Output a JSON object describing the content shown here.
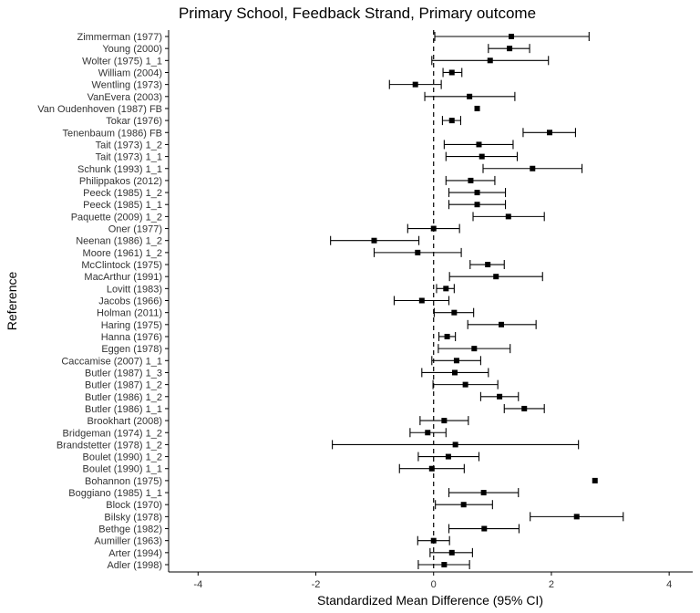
{
  "chart_data": {
    "type": "forest",
    "title": "Primary School, Feedback Strand, Primary outcome",
    "xlabel": "Standardized Mean Difference (95% CI)",
    "ylabel": "Reference",
    "xlim": [
      -4.5,
      4.4
    ],
    "x_ticks": [
      -4,
      -2,
      0,
      2,
      4
    ],
    "reference_line_x": 0,
    "grid": false,
    "studies": [
      {
        "label": "Zimmerman (1977)",
        "est": 1.32,
        "lo": 0.02,
        "hi": 2.64
      },
      {
        "label": "Young (2000)",
        "est": 1.29,
        "lo": 0.93,
        "hi": 1.63
      },
      {
        "label": "Wolter (1975) 1_1",
        "est": 0.96,
        "lo": -0.03,
        "hi": 1.95
      },
      {
        "label": "William (2004)",
        "est": 0.31,
        "lo": 0.16,
        "hi": 0.48
      },
      {
        "label": "Wentling (1973)",
        "est": -0.31,
        "lo": -0.75,
        "hi": 0.13
      },
      {
        "label": "VanEvera (2003)",
        "est": 0.61,
        "lo": -0.15,
        "hi": 1.38
      },
      {
        "label": "Van Oudenhoven (1987) FB",
        "est": 0.74,
        "lo": 0.74,
        "hi": 0.74
      },
      {
        "label": "Tokar (1976)",
        "est": 0.31,
        "lo": 0.15,
        "hi": 0.46
      },
      {
        "label": "Tenenbaum (1986) FB",
        "est": 1.97,
        "lo": 1.52,
        "hi": 2.41
      },
      {
        "label": "Tait (1973) 1_2",
        "est": 0.77,
        "lo": 0.18,
        "hi": 1.35
      },
      {
        "label": "Tait (1973) 1_1",
        "est": 0.82,
        "lo": 0.21,
        "hi": 1.42
      },
      {
        "label": "Schunk (1993) 1_1",
        "est": 1.68,
        "lo": 0.84,
        "hi": 2.52
      },
      {
        "label": "Philippakos (2012)",
        "est": 0.63,
        "lo": 0.21,
        "hi": 1.04
      },
      {
        "label": "Peeck (1985) 1_2",
        "est": 0.74,
        "lo": 0.26,
        "hi": 1.22
      },
      {
        "label": "Peeck (1985) 1_1",
        "est": 0.74,
        "lo": 0.26,
        "hi": 1.22
      },
      {
        "label": "Paquette (2009) 1_2",
        "est": 1.27,
        "lo": 0.67,
        "hi": 1.88
      },
      {
        "label": "Oner (1977)",
        "est": 0.0,
        "lo": -0.44,
        "hi": 0.44
      },
      {
        "label": "Neenan (1986) 1_2",
        "est": -1.01,
        "lo": -1.75,
        "hi": -0.25
      },
      {
        "label": "Moore (1961) 1_2",
        "est": -0.27,
        "lo": -1.01,
        "hi": 0.47
      },
      {
        "label": "McClintock (1975)",
        "est": 0.92,
        "lo": 0.62,
        "hi": 1.2
      },
      {
        "label": "MacArthur (1991)",
        "est": 1.06,
        "lo": 0.27,
        "hi": 1.85
      },
      {
        "label": "Lovitt (1983)",
        "est": 0.21,
        "lo": 0.05,
        "hi": 0.35
      },
      {
        "label": "Jacobs (1966)",
        "est": -0.2,
        "lo": -0.67,
        "hi": 0.26
      },
      {
        "label": "Holman (2011)",
        "est": 0.35,
        "lo": 0.01,
        "hi": 0.68
      },
      {
        "label": "Haring (1975)",
        "est": 1.15,
        "lo": 0.58,
        "hi": 1.74
      },
      {
        "label": "Hanna (1976)",
        "est": 0.23,
        "lo": 0.09,
        "hi": 0.37
      },
      {
        "label": "Eggen (1978)",
        "est": 0.69,
        "lo": 0.08,
        "hi": 1.3
      },
      {
        "label": "Caccamise (2007) 1_1",
        "est": 0.39,
        "lo": -0.03,
        "hi": 0.8
      },
      {
        "label": "Butler (1987) 1_3",
        "est": 0.36,
        "lo": -0.2,
        "hi": 0.93
      },
      {
        "label": "Butler (1987) 1_2",
        "est": 0.54,
        "lo": -0.01,
        "hi": 1.09
      },
      {
        "label": "Butler (1986) 1_2",
        "est": 1.12,
        "lo": 0.8,
        "hi": 1.44
      },
      {
        "label": "Butler (1986) 1_1",
        "est": 1.54,
        "lo": 1.2,
        "hi": 1.88
      },
      {
        "label": "Brookhart (2008)",
        "est": 0.18,
        "lo": -0.23,
        "hi": 0.59
      },
      {
        "label": "Bridgeman (1974) 1_2",
        "est": -0.1,
        "lo": -0.4,
        "hi": 0.21
      },
      {
        "label": "Brandstetter (1978) 1_2",
        "est": 0.37,
        "lo": -1.72,
        "hi": 2.46
      },
      {
        "label": "Boulet (1990) 1_2",
        "est": 0.25,
        "lo": -0.26,
        "hi": 0.77
      },
      {
        "label": "Boulet (1990) 1_1",
        "est": -0.03,
        "lo": -0.58,
        "hi": 0.52
      },
      {
        "label": "Bohannon (1975)",
        "est": 2.74,
        "lo": 2.74,
        "hi": 2.74
      },
      {
        "label": "Boggiano (1985) 1_1",
        "est": 0.85,
        "lo": 0.26,
        "hi": 1.44
      },
      {
        "label": "Block (1970)",
        "est": 0.51,
        "lo": 0.03,
        "hi": 1.0
      },
      {
        "label": "Bilsky (1978)",
        "est": 2.43,
        "lo": 1.64,
        "hi": 3.22
      },
      {
        "label": "Bethge (1982)",
        "est": 0.86,
        "lo": 0.26,
        "hi": 1.45
      },
      {
        "label": "Aumiller (1963)",
        "est": 0.0,
        "lo": -0.27,
        "hi": 0.27
      },
      {
        "label": "Arter (1994)",
        "est": 0.31,
        "lo": -0.06,
        "hi": 0.66
      },
      {
        "label": "Adler (1998)",
        "est": 0.18,
        "lo": -0.26,
        "hi": 0.61
      }
    ]
  }
}
